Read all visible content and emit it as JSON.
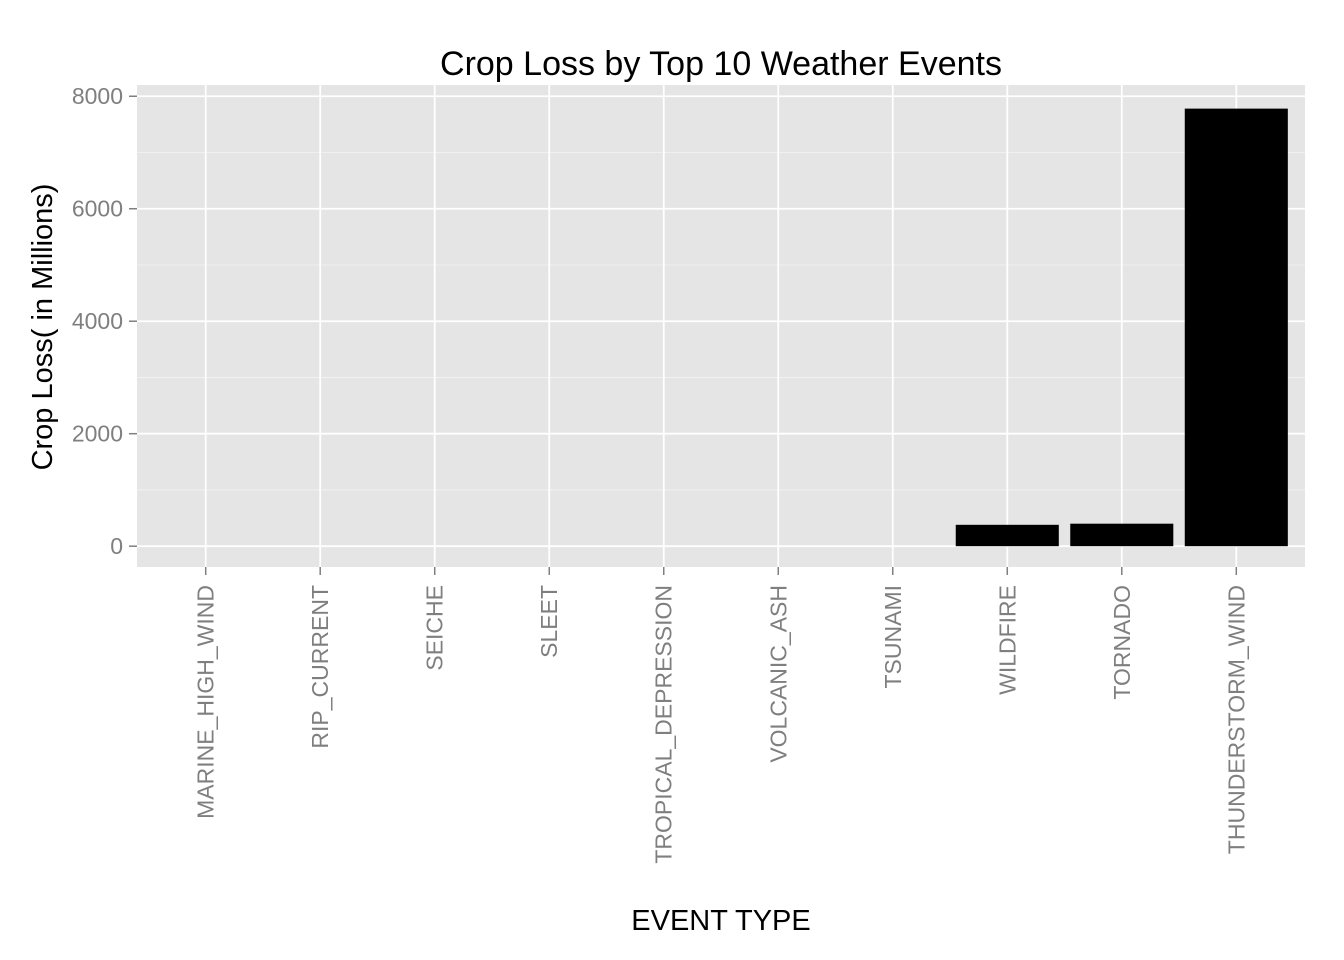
{
  "chart_data": {
    "type": "bar",
    "title": "Crop Loss by Top 10 Weather Events",
    "xlabel": "EVENT TYPE",
    "ylabel": "Crop Loss( in Millions)",
    "categories": [
      "MARINE_HIGH_WIND",
      "RIP_CURRENT",
      "SEICHE",
      "SLEET",
      "TROPICAL_DEPRESSION",
      "VOLCANIC_ASH",
      "TSUNAMI",
      "WILDFIRE",
      "TORNADO",
      "THUNDERSTORM_WIND"
    ],
    "values": [
      0,
      0,
      0,
      0,
      0,
      0,
      0,
      380,
      400,
      7780
    ],
    "ylim": [
      -370,
      8200
    ],
    "yticks": [
      0,
      2000,
      4000,
      6000,
      8000
    ],
    "ytick_labels": [
      "0",
      "2000",
      "4000",
      "6000",
      "8000"
    ],
    "grid": true,
    "bar_color": "#000000",
    "panel_color": "#e5e5e5",
    "grid_color": "#ffffff"
  }
}
